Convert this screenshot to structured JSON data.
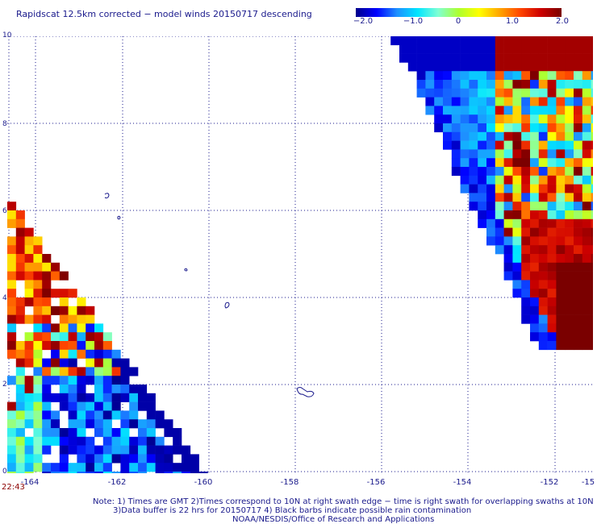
{
  "title": "Rapidscat 12.5km corrected − model winds 20150717 descending",
  "colorbar": {
    "labels": [
      "−2.0",
      "−1.0",
      "0",
      "1.0",
      "2.0"
    ],
    "stops": [
      "#00008b",
      "#0000ff",
      "#1e90ff",
      "#00e5ff",
      "#7fffd4",
      "#adff2f",
      "#ffff00",
      "#ffa500",
      "#ff4500",
      "#cc0000",
      "#7a0000"
    ],
    "min": -2.0,
    "max": 2.0
  },
  "axes": {
    "y_ticks": [
      "10",
      "8",
      "6",
      "4",
      "2",
      "0"
    ],
    "x_ticks": [
      "-164",
      "-162",
      "-160",
      "-158",
      "-156",
      "-154",
      "-152",
      "-15"
    ]
  },
  "timestamp": "22:43",
  "notes": {
    "line1": "Note: 1) Times are GMT 2)Times correspond to 10N at right swath edge − time is right swath for overlapping swaths at 10N",
    "line2": "3)Data buffer is 22 hrs for 20150717 4) Black barbs indicate possible rain contamination",
    "line3": "NOAA/NESDIS/Office of Research and Applications"
  }
}
